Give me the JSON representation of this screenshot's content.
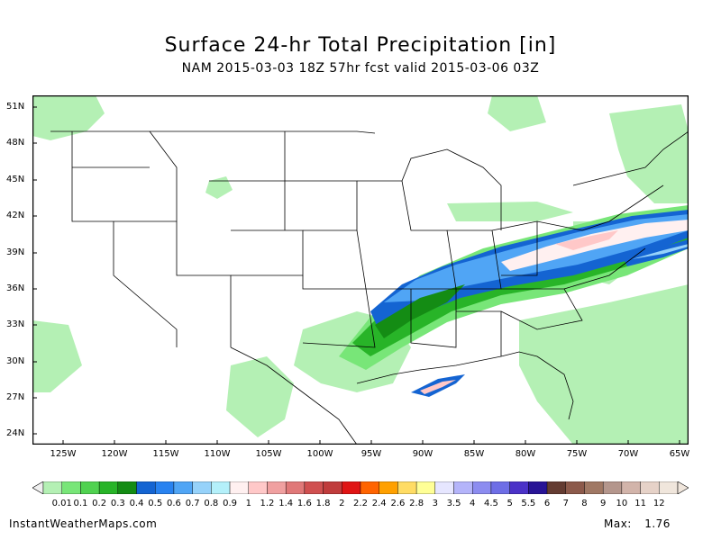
{
  "title": "Surface 24-hr Total Precipitation [in]",
  "subtitle": "NAM 2015-03-03 18Z 57hr fcst valid 2015-03-06 03Z",
  "lat_labels": [
    "51N",
    "48N",
    "45N",
    "42N",
    "39N",
    "36N",
    "33N",
    "30N",
    "27N",
    "24N"
  ],
  "lon_labels": [
    "125W",
    "120W",
    "115W",
    "110W",
    "105W",
    "100W",
    "95W",
    "90W",
    "85W",
    "80W",
    "75W",
    "70W",
    "65W"
  ],
  "colorbar": {
    "labels": [
      "0.01",
      "0.1",
      "0.2",
      "0.3",
      "0.4",
      "0.5",
      "0.6",
      "0.7",
      "0.8",
      "0.9",
      "1",
      "1.2",
      "1.4",
      "1.6",
      "1.8",
      "2",
      "2.2",
      "2.4",
      "2.6",
      "2.8",
      "3",
      "3.5",
      "4",
      "4.5",
      "5",
      "5.5",
      "6",
      "7",
      "8",
      "9",
      "10",
      "11",
      "12"
    ],
    "colors": [
      "#b4f0b4",
      "#78e678",
      "#50d250",
      "#28b428",
      "#148c14",
      "#1464d2",
      "#2882f0",
      "#50a5f5",
      "#96d2fa",
      "#b4f0fa",
      "#fff0f0",
      "#ffc8c8",
      "#f0a0a0",
      "#e07878",
      "#d05050",
      "#c03c3c",
      "#e01414",
      "#ff6400",
      "#ffa000",
      "#ffdc64",
      "#ffff96",
      "#e6e6ff",
      "#b4b4fa",
      "#8c8cf0",
      "#6e6ee6",
      "#4b32c8",
      "#281496",
      "#643c32",
      "#8c5a4b",
      "#a07864",
      "#b4968c",
      "#d2b4aa",
      "#e6d2c8",
      "#f0e6dc"
    ]
  },
  "footer": {
    "site": "InstantWeatherMaps.com",
    "max_label": "Max:",
    "max_value": "1.76"
  }
}
